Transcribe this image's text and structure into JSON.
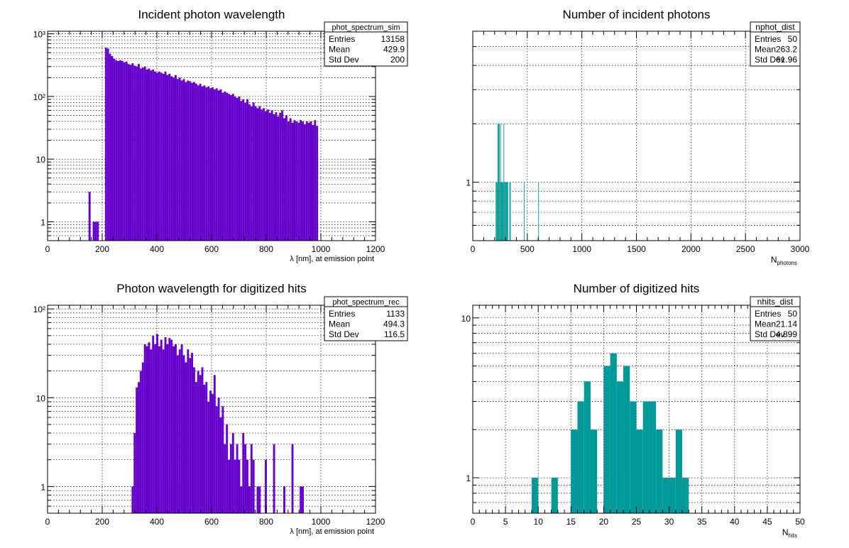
{
  "colors": {
    "sim_fill": "#6600cc",
    "rec_fill": "#6600cc",
    "nphot_fill": "#009999",
    "nhits_fill": "#009999",
    "frame": "#000000",
    "grid": "#000000"
  },
  "chart_data": [
    {
      "id": "phot_spectrum_sim",
      "type": "bar",
      "title": "Incident photon wavelength",
      "xlabel": "λ [nm], at emission point",
      "ylabel": "",
      "log_y": true,
      "grid": true,
      "xlim": [
        0,
        1200
      ],
      "ylim": [
        0.5,
        1100
      ],
      "x_ticks": [
        "0",
        "200",
        "400",
        "600",
        "800",
        "1000",
        "1200"
      ],
      "y_ticks": [
        "1",
        "10",
        "10²",
        "10³"
      ],
      "stats": {
        "title": "phot_spectrum_sim",
        "rows": [
          {
            "label": "Entries",
            "value": "13158"
          },
          {
            "label": "Mean",
            "value": "429.9"
          },
          {
            "label": "Std Dev",
            "value": "200"
          }
        ]
      },
      "bin_start": 150,
      "bin_width": 7.5,
      "values": [
        3,
        0,
        1,
        1,
        1,
        0,
        0,
        0,
        600,
        580,
        480,
        440,
        400,
        380,
        370,
        380,
        370,
        350,
        360,
        330,
        320,
        340,
        310,
        300,
        330,
        280,
        290,
        300,
        270,
        280,
        260,
        270,
        250,
        240,
        250,
        240,
        230,
        250,
        220,
        230,
        210,
        200,
        220,
        190,
        200,
        180,
        190,
        170,
        180,
        175,
        165,
        170,
        160,
        150,
        160,
        145,
        150,
        140,
        145,
        135,
        140,
        130,
        135,
        125,
        130,
        115,
        120,
        115,
        110,
        105,
        110,
        100,
        95,
        100,
        85,
        90,
        80,
        90,
        75,
        70,
        80,
        70,
        65,
        70,
        62,
        65,
        58,
        62,
        55,
        60,
        52,
        56,
        48,
        55,
        60,
        45,
        50,
        40,
        45,
        38,
        42,
        40,
        38,
        42,
        40,
        36,
        40,
        38,
        40,
        35,
        42,
        34
      ]
    },
    {
      "id": "nphot_dist",
      "type": "bar",
      "title": "Number of incident photons",
      "xlabel": "N",
      "xlabel_sub": "photons",
      "ylabel": "",
      "log_y": true,
      "grid": true,
      "xlim": [
        0,
        3000
      ],
      "ylim": [
        0.5,
        6
      ],
      "x_ticks": [
        "0",
        "500",
        "1000",
        "1500",
        "2000",
        "2500",
        "3000"
      ],
      "y_ticks": [
        "1"
      ],
      "stats": {
        "title": "nphot_dist",
        "rows": [
          {
            "label": "Entries",
            "value": "50"
          },
          {
            "label": "Mean",
            "value": "263.2"
          },
          {
            "label": "Std Dev",
            "value": "61.96"
          }
        ]
      },
      "bin_start": 0,
      "bin_width": 6,
      "values": [
        0,
        0,
        0,
        0,
        0,
        0,
        0,
        0,
        0,
        0,
        0,
        0,
        0,
        0,
        0,
        0,
        0,
        0,
        0,
        0,
        0,
        0,
        0,
        0,
        0,
        0,
        0,
        0,
        0,
        0,
        0,
        0,
        0,
        0,
        0,
        1,
        1,
        1,
        2,
        2,
        2,
        1,
        2,
        1,
        1,
        1,
        1,
        2,
        1,
        1,
        1,
        1,
        1,
        1,
        0,
        0,
        1,
        1,
        0,
        0,
        0,
        0,
        0,
        0,
        0,
        0,
        0,
        0,
        0,
        0,
        0,
        0,
        0,
        0,
        0,
        0,
        0,
        0,
        1,
        0,
        0,
        0,
        0,
        0,
        0,
        0,
        0,
        0,
        0,
        0,
        0,
        0,
        0,
        0,
        0,
        0,
        0,
        0,
        0,
        0,
        1
      ]
    },
    {
      "id": "phot_spectrum_rec",
      "type": "bar",
      "title": "Photon wavelength for digitized hits",
      "xlabel": "λ [nm], at emission point",
      "ylabel": "",
      "log_y": true,
      "grid": true,
      "xlim": [
        0,
        1200
      ],
      "ylim": [
        0.5,
        110
      ],
      "x_ticks": [
        "0",
        "200",
        "400",
        "600",
        "800",
        "1000",
        "1200"
      ],
      "y_ticks": [
        "1",
        "10",
        "10²"
      ],
      "stats": {
        "title": "phot_spectrum_rec",
        "rows": [
          {
            "label": "Entries",
            "value": "1133"
          },
          {
            "label": "Mean",
            "value": "494.3"
          },
          {
            "label": "Std Dev",
            "value": "116.5"
          }
        ]
      },
      "bin_start": 307.5,
      "bin_width": 7.5,
      "values": [
        1,
        4,
        13,
        15,
        20,
        25,
        40,
        38,
        42,
        35,
        50,
        40,
        52,
        38,
        45,
        35,
        48,
        40,
        47,
        45,
        38,
        40,
        30,
        35,
        40,
        30,
        25,
        35,
        28,
        32,
        22,
        15,
        20,
        18,
        22,
        14,
        15,
        9,
        12,
        11,
        18,
        8,
        10,
        6,
        8,
        3,
        5,
        2,
        3,
        4,
        2,
        3,
        2,
        1,
        4,
        3,
        2,
        1,
        3,
        2,
        0,
        1,
        1,
        0,
        0,
        2,
        0,
        0,
        0,
        3,
        0,
        0,
        0,
        0,
        1,
        0,
        0,
        0,
        3,
        0,
        0,
        0,
        1,
        1
      ]
    },
    {
      "id": "nhits_dist",
      "type": "bar",
      "title": "Number of digitized hits",
      "xlabel": "N",
      "xlabel_sub": "hits",
      "ylabel": "",
      "log_y": true,
      "grid": true,
      "xlim": [
        0,
        50
      ],
      "ylim": [
        0.6,
        12
      ],
      "x_ticks": [
        "0",
        "5",
        "10",
        "15",
        "20",
        "25",
        "30",
        "35",
        "40",
        "45",
        "50"
      ],
      "y_ticks": [
        "1",
        "10"
      ],
      "stats": {
        "title": "nhits_dist",
        "rows": [
          {
            "label": "Entries",
            "value": "50"
          },
          {
            "label": "Mean",
            "value": "21.14"
          },
          {
            "label": "Std Dev",
            "value": "4.899"
          }
        ]
      },
      "bin_start": 9,
      "bin_width": 1,
      "values": [
        1,
        0,
        0,
        1,
        0,
        0,
        2,
        3,
        4,
        2,
        0,
        5,
        6,
        4,
        5,
        3,
        2,
        3,
        3,
        2,
        1,
        1,
        2,
        1
      ]
    }
  ]
}
